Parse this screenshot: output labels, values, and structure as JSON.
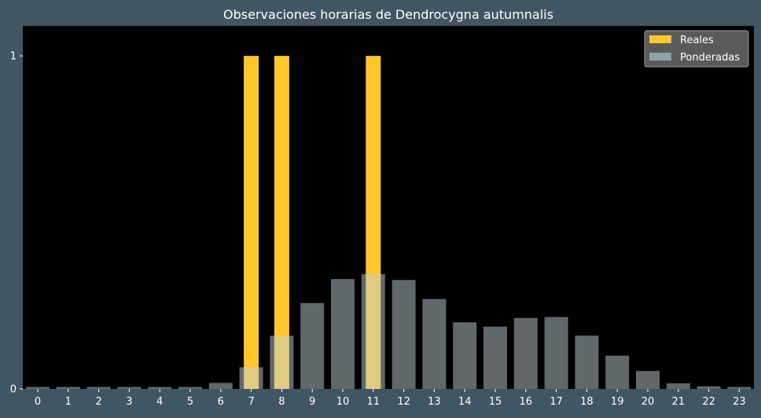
{
  "colors": {
    "background": "#405663",
    "plot_background": "#000000",
    "text": "#ffffff",
    "reales": "#ffc72c",
    "ponderadas": "#c0d0d8"
  },
  "chart_data": {
    "type": "bar",
    "title": "Observaciones horarias de Dendrocygna autumnalis",
    "xlabel": "",
    "ylabel": "",
    "categories": [
      "0",
      "1",
      "2",
      "3",
      "4",
      "5",
      "6",
      "7",
      "8",
      "9",
      "10",
      "11",
      "12",
      "13",
      "14",
      "15",
      "16",
      "17",
      "18",
      "19",
      "20",
      "21",
      "22",
      "23"
    ],
    "ylim": [
      0,
      1.09
    ],
    "yticks": [
      0,
      1
    ],
    "grid": false,
    "legend_position": "top-right",
    "series": [
      {
        "name": "Reales",
        "values": [
          0,
          0,
          0,
          0,
          0,
          0,
          0,
          1,
          1,
          0,
          0,
          1,
          0,
          0,
          0,
          0,
          0,
          0,
          0,
          0,
          0,
          0,
          0,
          0
        ]
      },
      {
        "name": "Ponderadas",
        "values": [
          0.006,
          0.006,
          0.006,
          0.006,
          0.006,
          0.006,
          0.018,
          0.065,
          0.16,
          0.258,
          0.33,
          0.345,
          0.327,
          0.27,
          0.2,
          0.187,
          0.213,
          0.216,
          0.16,
          0.1,
          0.054,
          0.017,
          0.008,
          0.006
        ]
      }
    ]
  }
}
